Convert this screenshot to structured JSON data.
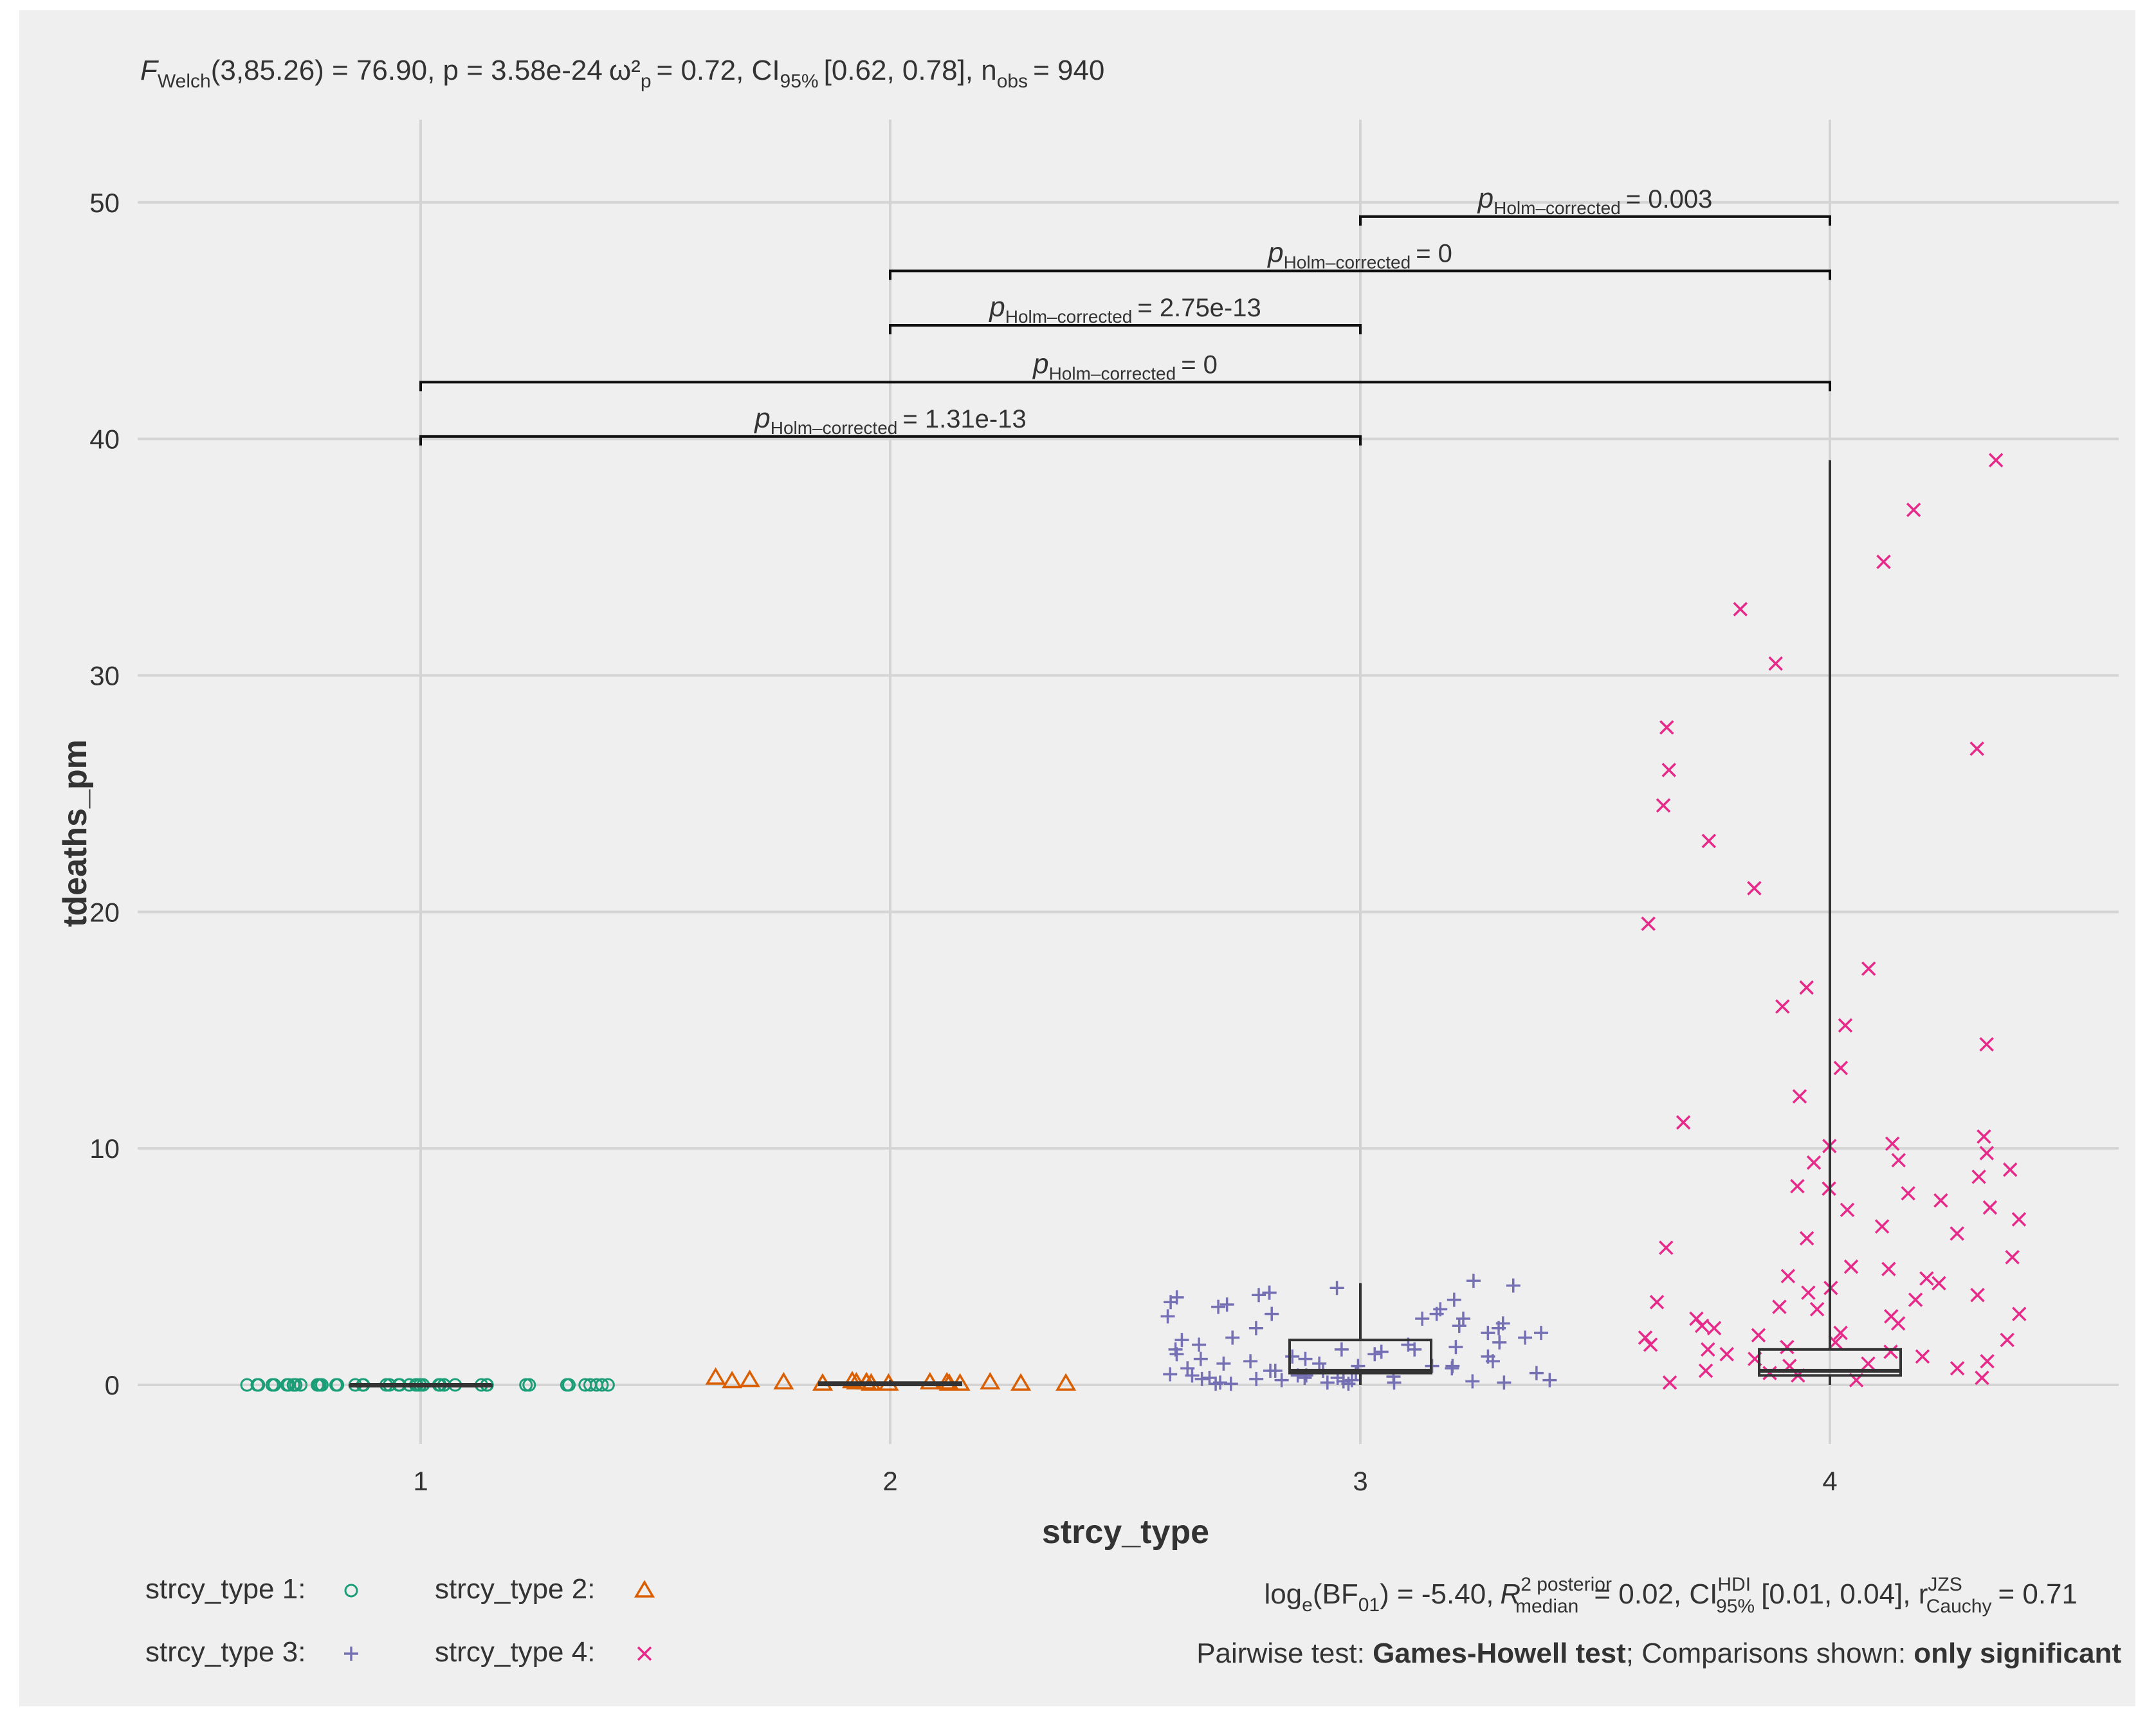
{
  "subtitle": {
    "stat": "F",
    "stat_sub": "Welch",
    "stat_args": "(3,85.26) = 76.90",
    "p_text": ", p = 3.58e-24",
    "es_sym": "ω²",
    "es_sub": "p",
    "es_text": "= 0.72",
    "ci": ", CI",
    "ci_sub": "95%",
    "ci_text": "[0.62, 0.78]",
    "n_text": ", n",
    "n_sub": "obs",
    "n_val": "= 940"
  },
  "chart_data": {
    "type": "box-jitter",
    "xlabel": "strcy_type",
    "ylabel": "tdeaths_pm",
    "categories": [
      "1",
      "2",
      "3",
      "4"
    ],
    "ylim": [
      -2.5,
      53.5
    ],
    "yticks": [
      0,
      10,
      20,
      30,
      40,
      50
    ],
    "grid": true,
    "groups": [
      {
        "name": "strcy_type 1",
        "symbol": "circle",
        "color": "#1b9e77",
        "points": [
          0,
          0,
          0,
          0,
          0,
          0,
          0,
          0,
          0,
          0,
          0,
          0,
          0,
          0,
          0,
          0,
          0,
          0,
          0,
          0,
          0,
          0,
          0,
          0,
          0,
          0,
          0,
          0,
          0,
          0,
          0,
          0,
          0,
          0,
          0,
          0,
          0,
          0,
          0,
          0,
          0,
          0,
          0,
          0,
          0,
          0,
          0,
          0
        ],
        "box": {
          "q1": 0,
          "median": 0,
          "q3": 0,
          "whisker_low": 0,
          "whisker_high": 0
        }
      },
      {
        "name": "strcy_type 2",
        "symbol": "triangle",
        "color": "#d95f02",
        "points": [
          0.1,
          0.15,
          0.1,
          0.05,
          0.2,
          0.1,
          0.05,
          0.15,
          0.3,
          0.1,
          0.05,
          0.1,
          0.05,
          0.05,
          0.1,
          0.05,
          0.1,
          0.05,
          0.05
        ],
        "box": {
          "q1": 0,
          "median": 0.05,
          "q3": 0.1,
          "whisker_low": 0,
          "whisker_high": 0.2
        }
      },
      {
        "name": "strcy_type 3",
        "symbol": "plus",
        "color": "#7570b3",
        "points": [
          4.1,
          3.9,
          3.8,
          3.6,
          3.3,
          3.0,
          2.8,
          2.4,
          2.2,
          2.0,
          1.8,
          1.6,
          1.5,
          1.4,
          1.3,
          1.2,
          1.1,
          1.0,
          0.9,
          0.8,
          0.7,
          0.6,
          0.5,
          0.45,
          0.4,
          0.35,
          0.3,
          0.25,
          0.2,
          0.15,
          0.1,
          0.1,
          0.05,
          0.05,
          4.4,
          4.2,
          3.9,
          3.7,
          3.4,
          3.2,
          3.0,
          2.8,
          2.6,
          2.4,
          2.2,
          2.0,
          1.9,
          1.7,
          1.5,
          1.3,
          1.2,
          1.0,
          0.9,
          0.8,
          0.7,
          0.6,
          0.5,
          0.4,
          0.3,
          0.25,
          0.2,
          0.15,
          0.1,
          0.05,
          2.9,
          1.7,
          1.1,
          0.6,
          0.3,
          0.2,
          0.1,
          3.5,
          2.5,
          1.5,
          0.8,
          0.4
        ],
        "box": {
          "q1": 0.5,
          "median": 0.6,
          "q3": 1.9,
          "whisker_low": 0,
          "whisker_high": 4.3
        }
      },
      {
        "name": "strcy_type 4",
        "symbol": "x",
        "color": "#e7298a",
        "points": [
          39.1,
          37.0,
          34.8,
          32.8,
          30.5,
          27.8,
          26.9,
          26.0,
          24.5,
          23.0,
          21.0,
          19.5,
          17.6,
          16.8,
          16.0,
          15.2,
          14.4,
          13.4,
          12.2,
          11.1,
          10.5,
          10.2,
          10.1,
          9.8,
          9.5,
          9.4,
          9.1,
          8.8,
          8.4,
          8.3,
          8.1,
          7.8,
          7.5,
          7.4,
          7.0,
          6.7,
          6.4,
          6.2,
          5.8,
          5.4,
          5.0,
          4.9,
          4.6,
          4.5,
          4.3,
          4.1,
          3.9,
          3.8,
          3.6,
          3.5,
          3.3,
          3.2,
          3.0,
          2.9,
          2.8,
          2.6,
          2.5,
          2.4,
          2.2,
          2.1,
          2.0,
          1.9,
          1.8,
          1.7,
          1.6,
          1.5,
          1.4,
          1.3,
          1.2,
          1.1,
          1.0,
          0.9,
          0.8,
          0.7,
          0.6,
          0.5,
          0.4,
          0.3,
          0.2,
          0.1
        ],
        "box": {
          "q1": 0.4,
          "median": 0.6,
          "q3": 1.5,
          "whisker_low": 0,
          "whisker_high": 39.1
        }
      }
    ],
    "comparisons": [
      {
        "from": "1",
        "to": "3",
        "y": 40.1,
        "label": "= 1.31e-13"
      },
      {
        "from": "1",
        "to": "4",
        "y": 42.4,
        "label": "= 0"
      },
      {
        "from": "2",
        "to": "3",
        "y": 44.8,
        "label": "= 2.75e-13"
      },
      {
        "from": "2",
        "to": "4",
        "y": 47.1,
        "label": "= 0"
      },
      {
        "from": "3",
        "to": "4",
        "y": 49.4,
        "label": "= 0.003"
      }
    ],
    "comparison_label_main": "p",
    "comparison_label_sub": "Holm–corrected",
    "legend": [
      "strcy_type 1:",
      "strcy_type 2:",
      "strcy_type 3:",
      "strcy_type 4:"
    ]
  },
  "caption": {
    "bf_prefix": "log",
    "bf_sub": "e",
    "bf_mid": "(BF",
    "bf_sub2": "01",
    "bf_val": ") = -5.40,",
    "r2": "R",
    "r2_sup": "2 posterior",
    "r2_sub": "median",
    "r2_val": "= 0.02, CI",
    "ci_sup": "HDI",
    "ci_sub": "95%",
    "ci_val": "[0.01, 0.04], r",
    "r_sup": "JZS",
    "r_sub": "Cauchy",
    "r_val": "= 0.71",
    "pairwise_prefix": "Pairwise test:",
    "pairwise_test": "Games-Howell test",
    "shown_prefix": "; Comparisons shown:",
    "shown_value": "only significant"
  }
}
